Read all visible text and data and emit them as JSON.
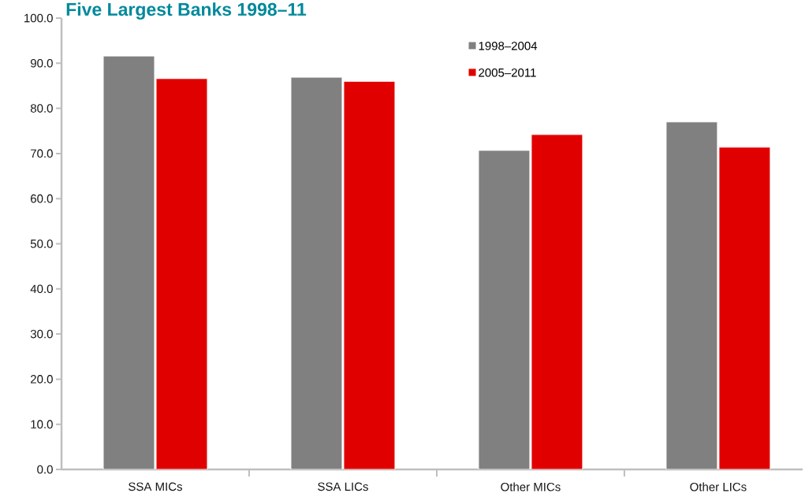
{
  "chart_data": {
    "type": "bar",
    "title": "Five Largest Banks 1998–11",
    "categories": [
      "SSA MICs",
      "SSA LICs",
      "Other MICs",
      "Other LICs"
    ],
    "series": [
      {
        "name": "1998–2004",
        "color": "#808080",
        "values": [
          91.6,
          86.9,
          70.7,
          77.0
        ]
      },
      {
        "name": "2005–2011",
        "color": "#e00000",
        "values": [
          86.6,
          86.0,
          74.2,
          71.4
        ]
      }
    ],
    "ylim": [
      0,
      100
    ],
    "yticks": [
      {
        "value": 0,
        "label": "0.0"
      },
      {
        "value": 10,
        "label": "10.0"
      },
      {
        "value": 20,
        "label": "20.0"
      },
      {
        "value": 30,
        "label": "30.0"
      },
      {
        "value": 40,
        "label": "40.0"
      },
      {
        "value": 50,
        "label": "50.0"
      },
      {
        "value": 60,
        "label": "60.0"
      },
      {
        "value": 70,
        "label": "70.0"
      },
      {
        "value": 80,
        "label": "80.0"
      },
      {
        "value": 90,
        "label": "90.0"
      },
      {
        "value": 100,
        "label": "100.0"
      }
    ],
    "legend": "top"
  }
}
